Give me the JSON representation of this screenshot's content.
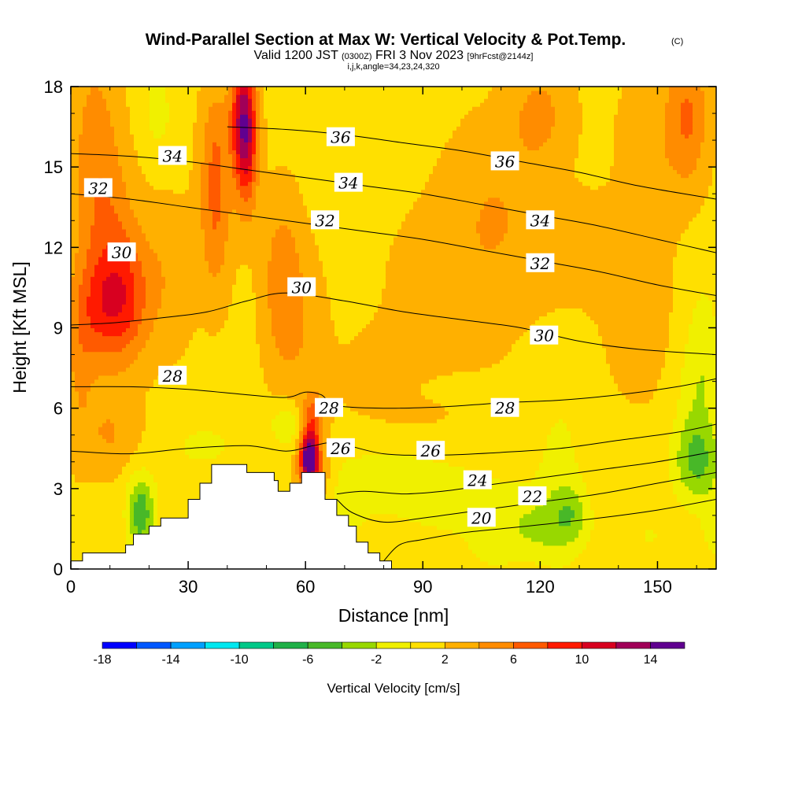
{
  "title": {
    "main": "Wind-Parallel Section at Max W: Vertical Velocity & Pot.Temp.",
    "copyright": "(C)",
    "valid_prefix": "Valid 1200 JST",
    "valid_utc": "(0300Z)",
    "valid_date": "FRI 3 Nov 2023",
    "forecast": "[9hrFcst@2144z]",
    "indices": "i,j,k,angle=34,23,24,320"
  },
  "chart_data": {
    "type": "heatmap",
    "xlabel": "Distance [nm]",
    "ylabel": "Height [Kft MSL]",
    "xlim": [
      0,
      165
    ],
    "ylim": [
      0,
      18
    ],
    "xticks": [
      0,
      30,
      60,
      90,
      120,
      150
    ],
    "yticks": [
      0,
      3,
      6,
      9,
      12,
      15,
      18
    ],
    "colorbar": {
      "label": "Vertical Velocity [cm/s]",
      "levels": [
        -18,
        -16,
        -14,
        -12,
        -10,
        -8,
        -6,
        -4,
        -2,
        0,
        2,
        4,
        6,
        8,
        10,
        12,
        14,
        16
      ],
      "tick_values": [
        -18,
        -14,
        -10,
        -6,
        -2,
        2,
        6,
        10,
        14
      ],
      "colors": [
        "#0000ff",
        "#0058ff",
        "#00a0ff",
        "#00e8f0",
        "#00c888",
        "#20b048",
        "#48b828",
        "#98d800",
        "#f0f000",
        "#ffe000",
        "#ffb000",
        "#ff8c00",
        "#ff5a00",
        "#ff1a00",
        "#d80020",
        "#a00058",
        "#600090"
      ]
    },
    "theta_contours": [
      {
        "value": 20,
        "points": [
          [
            80,
            0.3
          ],
          [
            84,
            0.9
          ],
          [
            90,
            1.1
          ],
          [
            100,
            1.35
          ],
          [
            110,
            1.5
          ],
          [
            120,
            1.65
          ],
          [
            135,
            1.9
          ],
          [
            150,
            2.2
          ],
          [
            165,
            2.6
          ]
        ]
      },
      {
        "value": 22,
        "points": [
          [
            68,
            2.6
          ],
          [
            72,
            2.1
          ],
          [
            80,
            1.75
          ],
          [
            90,
            1.9
          ],
          [
            100,
            2.1
          ],
          [
            110,
            2.3
          ],
          [
            120,
            2.5
          ],
          [
            135,
            2.8
          ],
          [
            150,
            3.2
          ],
          [
            165,
            3.6
          ]
        ]
      },
      {
        "value": 24,
        "points": [
          [
            68,
            2.8
          ],
          [
            75,
            2.9
          ],
          [
            85,
            2.8
          ],
          [
            95,
            2.9
          ],
          [
            105,
            3.1
          ],
          [
            120,
            3.4
          ],
          [
            135,
            3.7
          ],
          [
            150,
            4.0
          ],
          [
            165,
            4.4
          ]
        ]
      },
      {
        "value": 26,
        "points": [
          [
            0,
            4.4
          ],
          [
            15,
            4.3
          ],
          [
            30,
            4.5
          ],
          [
            45,
            4.6
          ],
          [
            55,
            4.4
          ],
          [
            62,
            4.6
          ],
          [
            68,
            4.7
          ],
          [
            80,
            4.3
          ],
          [
            95,
            4.25
          ],
          [
            110,
            4.35
          ],
          [
            125,
            4.5
          ],
          [
            140,
            4.8
          ],
          [
            155,
            5.1
          ],
          [
            165,
            5.4
          ]
        ]
      },
      {
        "value": 28,
        "points": [
          [
            0,
            6.8
          ],
          [
            15,
            6.8
          ],
          [
            30,
            6.7
          ],
          [
            45,
            6.5
          ],
          [
            55,
            6.4
          ],
          [
            60,
            6.6
          ],
          [
            64,
            6.5
          ],
          [
            68,
            6.1
          ],
          [
            80,
            6.0
          ],
          [
            95,
            6.05
          ],
          [
            110,
            6.2
          ],
          [
            125,
            6.3
          ],
          [
            140,
            6.5
          ],
          [
            155,
            6.8
          ],
          [
            165,
            7.1
          ]
        ]
      },
      {
        "value": 30,
        "points": [
          [
            0,
            9.1
          ],
          [
            12,
            9.2
          ],
          [
            25,
            9.4
          ],
          [
            35,
            9.6
          ],
          [
            45,
            10.0
          ],
          [
            55,
            10.3
          ],
          [
            70,
            10.0
          ],
          [
            85,
            9.6
          ],
          [
            100,
            9.3
          ],
          [
            115,
            9.0
          ],
          [
            130,
            8.5
          ],
          [
            145,
            8.2
          ],
          [
            165,
            8.0
          ]
        ]
      },
      {
        "value": 32,
        "points": [
          [
            0,
            14.0
          ],
          [
            15,
            13.8
          ],
          [
            30,
            13.5
          ],
          [
            45,
            13.2
          ],
          [
            60,
            12.9
          ],
          [
            75,
            12.6
          ],
          [
            90,
            12.3
          ],
          [
            105,
            11.9
          ],
          [
            120,
            11.5
          ],
          [
            135,
            11.1
          ],
          [
            150,
            10.6
          ],
          [
            165,
            10.2
          ]
        ]
      },
      {
        "value": 34,
        "points": [
          [
            0,
            15.5
          ],
          [
            15,
            15.4
          ],
          [
            30,
            15.2
          ],
          [
            45,
            14.9
          ],
          [
            60,
            14.6
          ],
          [
            75,
            14.3
          ],
          [
            90,
            14.0
          ],
          [
            105,
            13.6
          ],
          [
            120,
            13.2
          ],
          [
            135,
            12.8
          ],
          [
            150,
            12.3
          ],
          [
            165,
            11.8
          ]
        ]
      },
      {
        "value": 36,
        "points": [
          [
            40,
            16.5
          ],
          [
            55,
            16.4
          ],
          [
            70,
            16.2
          ],
          [
            85,
            15.9
          ],
          [
            100,
            15.6
          ],
          [
            115,
            15.2
          ],
          [
            130,
            14.8
          ],
          [
            145,
            14.3
          ],
          [
            165,
            13.8
          ]
        ]
      }
    ],
    "contour_labels": [
      {
        "text": "36",
        "x": 69,
        "y": 16.1
      },
      {
        "text": "36",
        "x": 111,
        "y": 15.2
      },
      {
        "text": "34",
        "x": 26,
        "y": 15.4
      },
      {
        "text": "34",
        "x": 71,
        "y": 14.4
      },
      {
        "text": "34",
        "x": 120,
        "y": 13.0
      },
      {
        "text": "32",
        "x": 7,
        "y": 14.2
      },
      {
        "text": "32",
        "x": 65,
        "y": 13.0
      },
      {
        "text": "32",
        "x": 120,
        "y": 11.4
      },
      {
        "text": "30",
        "x": 13,
        "y": 11.8
      },
      {
        "text": "30",
        "x": 59,
        "y": 10.5
      },
      {
        "text": "30",
        "x": 121,
        "y": 8.7
      },
      {
        "text": "28",
        "x": 26,
        "y": 7.2
      },
      {
        "text": "28",
        "x": 66,
        "y": 6.0
      },
      {
        "text": "28",
        "x": 111,
        "y": 6.0
      },
      {
        "text": "26",
        "x": 69,
        "y": 4.5
      },
      {
        "text": "26",
        "x": 92,
        "y": 4.4
      },
      {
        "text": "24",
        "x": 104,
        "y": 3.3
      },
      {
        "text": "22",
        "x": 118,
        "y": 2.7
      },
      {
        "text": "20",
        "x": 105,
        "y": 1.9
      }
    ],
    "terrain": [
      [
        0,
        0
      ],
      [
        0,
        0.3
      ],
      [
        3,
        0.3
      ],
      [
        3,
        0.6
      ],
      [
        14,
        0.6
      ],
      [
        14,
        0.9
      ],
      [
        16,
        0.9
      ],
      [
        16,
        1.3
      ],
      [
        20,
        1.3
      ],
      [
        20,
        1.6
      ],
      [
        23,
        1.6
      ],
      [
        23,
        1.9
      ],
      [
        30,
        1.9
      ],
      [
        30,
        2.6
      ],
      [
        33,
        2.6
      ],
      [
        33,
        3.2
      ],
      [
        36,
        3.2
      ],
      [
        36,
        3.9
      ],
      [
        45,
        3.9
      ],
      [
        45,
        3.6
      ],
      [
        52,
        3.6
      ],
      [
        52,
        3.3
      ],
      [
        53,
        3.3
      ],
      [
        53,
        2.9
      ],
      [
        56,
        2.9
      ],
      [
        56,
        3.2
      ],
      [
        59,
        3.2
      ],
      [
        59,
        3.6
      ],
      [
        65,
        3.6
      ],
      [
        65,
        2.6
      ],
      [
        68,
        2.6
      ],
      [
        68,
        2.0
      ],
      [
        71,
        2.0
      ],
      [
        71,
        1.6
      ],
      [
        73,
        1.6
      ],
      [
        73,
        1.0
      ],
      [
        76,
        1.0
      ],
      [
        76,
        0.6
      ],
      [
        79,
        0.6
      ],
      [
        79,
        0.3
      ],
      [
        82,
        0.3
      ],
      [
        82,
        0
      ]
    ]
  }
}
